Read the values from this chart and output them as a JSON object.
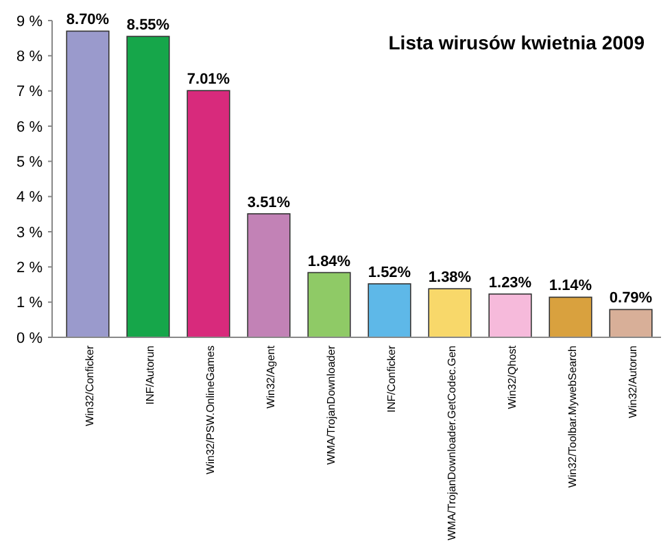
{
  "chart_data": {
    "type": "bar",
    "title": "Lista wirusów kwietnia 2009",
    "categories": [
      "Win32/Conficker",
      "INF/Autorun",
      "Win32/PSW.OnlineGames",
      "Win32/Agent",
      "WMA/TrojanDownloader",
      "INF/Conficker",
      "WMA/TrojanDownloader.GetCodec.Gen",
      "Win32/Qhost",
      "Win32/Toolbar.MywebSearch",
      "Win32/Autorun"
    ],
    "values": [
      8.7,
      8.55,
      7.01,
      3.51,
      1.84,
      1.52,
      1.38,
      1.23,
      1.14,
      0.79
    ],
    "value_labels": [
      "8.70%",
      "8.55%",
      "7.01%",
      "3.51%",
      "1.84%",
      "1.52%",
      "1.38%",
      "1.23%",
      "1.14%",
      "0.79%"
    ],
    "colors": [
      "#9a9acc",
      "#16a64a",
      "#d82a7c",
      "#c282b6",
      "#8fca66",
      "#5eb8e8",
      "#f8d86a",
      "#f6badb",
      "#d9a13e",
      "#d8af98"
    ],
    "ylim": [
      0,
      9
    ],
    "yticks": [
      {
        "value": 0,
        "label": "0 %"
      },
      {
        "value": 1,
        "label": "1 %"
      },
      {
        "value": 2,
        "label": "2 %"
      },
      {
        "value": 3,
        "label": "3 %"
      },
      {
        "value": 4,
        "label": "4 %"
      },
      {
        "value": 5,
        "label": "5 %"
      },
      {
        "value": 6,
        "label": "6 %"
      },
      {
        "value": 7,
        "label": "7 %"
      },
      {
        "value": 8,
        "label": "8 %"
      },
      {
        "value": 9,
        "label": "9 %"
      }
    ],
    "grid": false
  }
}
